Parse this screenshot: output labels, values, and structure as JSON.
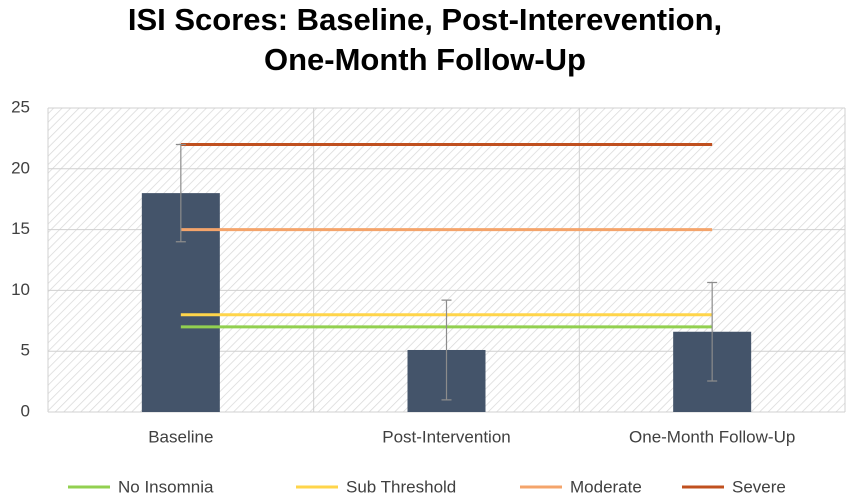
{
  "chart_data": {
    "type": "bar",
    "title": [
      "ISI Scores: Baseline, Post-Interevention,",
      "One-Month Follow-Up"
    ],
    "categories": [
      "Baseline",
      "Post-Intervention",
      "One-Month Follow-Up"
    ],
    "values": [
      18,
      5.1,
      6.6
    ],
    "errors": [
      4,
      4.1,
      4.05
    ],
    "color": "#44546a",
    "lines": [
      {
        "name": "No Insomnia",
        "color": "#92d050",
        "values": [
          7,
          7,
          7
        ]
      },
      {
        "name": "Sub Threshold",
        "color": "#ffd54a",
        "values": [
          8,
          8,
          8
        ]
      },
      {
        "name": "Moderate",
        "color": "#f4a46b",
        "values": [
          15,
          15,
          15
        ]
      },
      {
        "name": "Severe",
        "color": "#c0501f",
        "values": [
          22,
          22,
          22
        ]
      }
    ],
    "ylim": [
      0,
      25
    ],
    "yticks": [
      0,
      5,
      10,
      15,
      20,
      25
    ],
    "grid": true,
    "legend": "bottom"
  }
}
